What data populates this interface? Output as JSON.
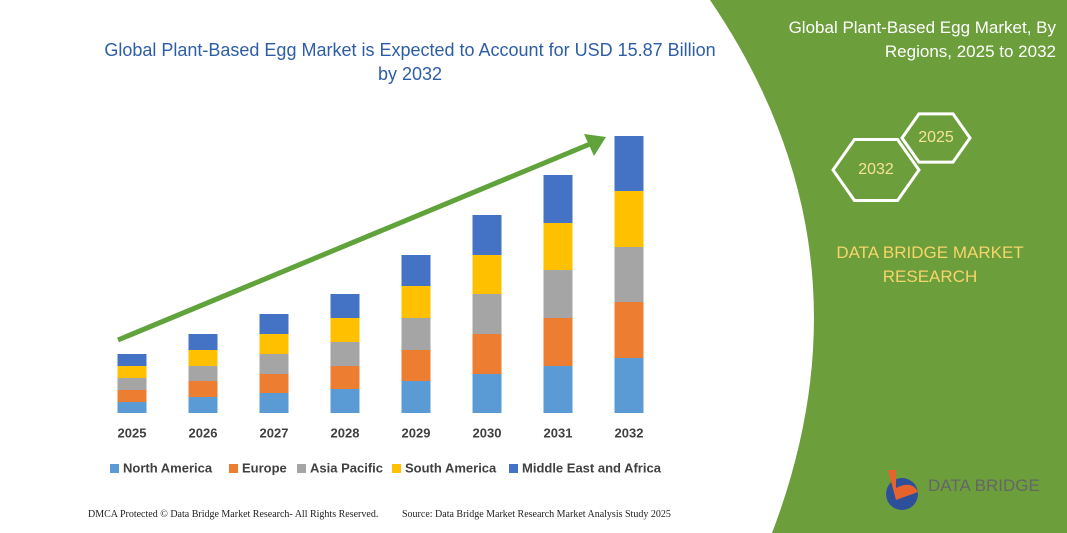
{
  "chart_data": {
    "type": "bar",
    "stacked": true,
    "title": "Global Plant-Based Egg Market is Expected to Account for USD 15.87 Billion by 2032",
    "categories": [
      "2025",
      "2026",
      "2027",
      "2028",
      "2029",
      "2030",
      "2031",
      "2032"
    ],
    "ylim": [
      0,
      280
    ],
    "series": [
      {
        "name": "North America",
        "color": "#5b9bd5",
        "values": [
          11,
          16,
          20,
          24,
          32,
          39,
          47,
          55
        ]
      },
      {
        "name": "Europe",
        "color": "#ed7d31",
        "values": [
          12,
          16,
          19,
          23,
          31,
          40,
          48,
          56
        ]
      },
      {
        "name": "Asia Pacific",
        "color": "#a5a5a5",
        "values": [
          12,
          15,
          20,
          24,
          32,
          40,
          48,
          55
        ]
      },
      {
        "name": "South America",
        "color": "#ffc000",
        "values": [
          12,
          16,
          20,
          24,
          32,
          39,
          47,
          56
        ]
      },
      {
        "name": "Middle East and Africa",
        "color": "#4472c4",
        "values": [
          12,
          16,
          20,
          24,
          31,
          40,
          48,
          55
        ]
      }
    ]
  },
  "panel": {
    "title": "Global Plant-Based Egg Market, By Regions, 2025 to 2032",
    "hexagons": [
      "2032",
      "2025"
    ],
    "brand": "DATA BRIDGE MARKET RESEARCH",
    "logo_text": "DATA BRIDGE"
  },
  "footer": {
    "left": "DMCA Protected © Data Bridge Market Research- All Rights Reserved.",
    "right": "Source: Data Bridge Market Research Market Analysis Study 2025"
  }
}
